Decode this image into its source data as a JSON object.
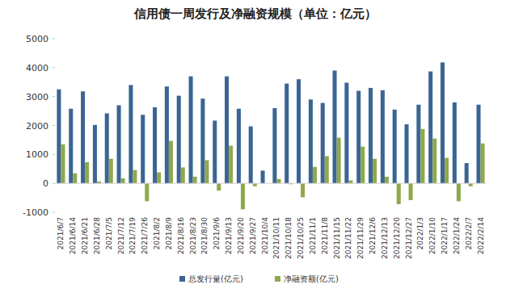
{
  "chart_data": {
    "type": "bar",
    "title": "信用债一周发行及净融资规模（单位：亿元）",
    "categories": [
      "2021/6/7",
      "2021/6/14",
      "2021/6/21",
      "2021/6/28",
      "2021/7/5",
      "2021/7/12",
      "2021/7/19",
      "2021/7/26",
      "2021/8/2",
      "2021/8/9",
      "2021/8/16",
      "2021/8/23",
      "2021/8/30",
      "2021/9/6",
      "2021/9/13",
      "2021/9/20",
      "2021/9/27",
      "2021/10/4",
      "2021/10/11",
      "2021/10/18",
      "2021/10/25",
      "2021/11/1",
      "2021/11/8",
      "2021/11/15",
      "2021/11/22",
      "2021/11/29",
      "2021/12/6",
      "2021/12/13",
      "2021/12/20",
      "2021/12/27",
      "2022/1/3",
      "2022/1/10",
      "2022/1/17",
      "2022/1/24",
      "2022/2/7",
      "2022/2/14"
    ],
    "series": [
      {
        "name": "总发行量(亿元)",
        "color": "#3a6594",
        "values": [
          3250,
          2580,
          3180,
          2020,
          2420,
          2700,
          3400,
          2370,
          2630,
          3350,
          3030,
          3700,
          2930,
          2170,
          3700,
          2580,
          1970,
          440,
          2600,
          3450,
          3600,
          2900,
          2780,
          3900,
          3480,
          3200,
          3300,
          3220,
          2550,
          2040,
          2720,
          3870,
          4180,
          2800,
          700,
          2720
        ]
      },
      {
        "name": "净融资额(亿元)",
        "color": "#8fa84d",
        "values": [
          1350,
          350,
          730,
          60,
          850,
          170,
          460,
          -620,
          380,
          1470,
          550,
          230,
          800,
          -250,
          1300,
          -900,
          -100,
          0,
          150,
          -30,
          -480,
          570,
          940,
          1580,
          100,
          1270,
          850,
          230,
          -720,
          -580,
          1880,
          1550,
          880,
          -620,
          -100,
          1380
        ]
      }
    ],
    "ylim": [
      -1000,
      5000
    ],
    "yticks": [
      -1000,
      0,
      1000,
      2000,
      3000,
      4000,
      5000
    ],
    "grid": false,
    "legend": "bottom"
  }
}
